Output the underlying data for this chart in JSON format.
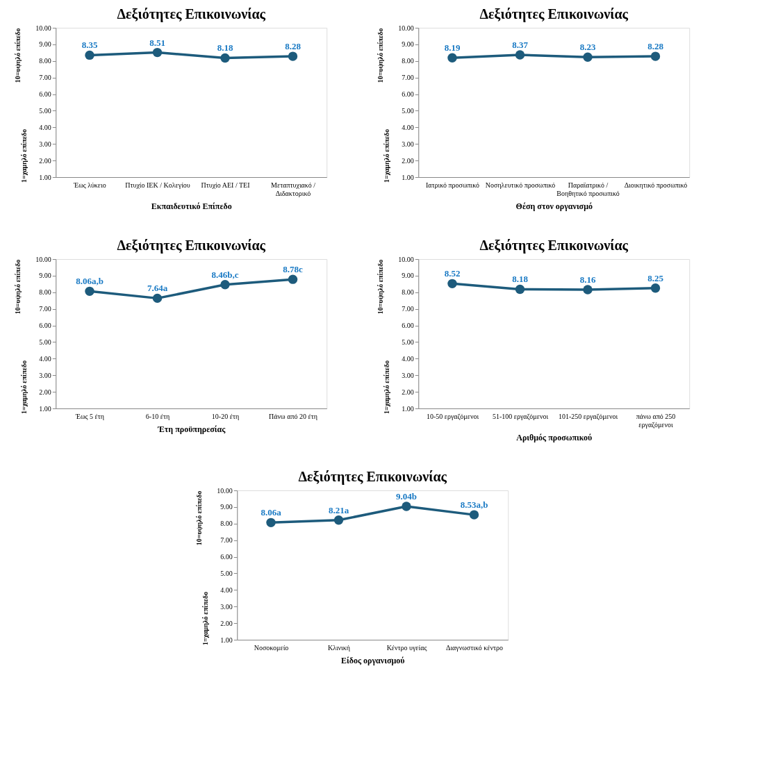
{
  "chart_data": [
    {
      "type": "line",
      "title": "Δεξιότητες Επικοινωνίας",
      "xlabel": "Εκπαιδευτικό Επίπεδο",
      "ylabel": "10=υψηλό επίπεδο",
      "annotations": [
        "1=χαμηλό επίπεδο"
      ],
      "categories": [
        "Έως λύκειο",
        "Πτυχίο ΙΕΚ / Κολεγίου",
        "Πτυχίο ΑΕΙ / ΤΕΙ",
        "Μεταπτυχιακό / Διδακτορικό"
      ],
      "series": [
        {
          "color": "#1d5b7c",
          "values": [
            8.35,
            8.51,
            8.18,
            8.28
          ],
          "value_labels": [
            "8.35",
            "8.51",
            "8.18",
            "8.28"
          ]
        }
      ],
      "ylim": [
        1,
        10
      ],
      "yticks": [
        {
          "value": 1,
          "label": "1.00"
        },
        {
          "value": 2,
          "label": "2.00"
        },
        {
          "value": 3,
          "label": "3.00"
        },
        {
          "value": 4,
          "label": "4.00"
        },
        {
          "value": 5,
          "label": "5.00"
        },
        {
          "value": 6,
          "label": "6.00"
        },
        {
          "value": 7,
          "label": "7.00"
        },
        {
          "value": 8,
          "label": "8.00"
        },
        {
          "value": 9,
          "label": "9.00"
        },
        {
          "value": 10,
          "label": "10.00"
        }
      ],
      "marker": "circle",
      "grid": false
    },
    {
      "type": "line",
      "title": "Δεξιότητες Επικοινωνίας",
      "xlabel": "Θέση στον οργανισμό",
      "ylabel": "10=υψηλό επίπεδο",
      "annotations": [
        "1=χαμηλό επίπεδο"
      ],
      "categories": [
        "Ιατρικό προσωπικό",
        "Νοσηλευτικό προσωπικό",
        "Παραϊατρικό / Βοηθητικό προσωπικό",
        "Διοικητικό προσωπικό"
      ],
      "series": [
        {
          "color": "#1d5b7c",
          "values": [
            8.19,
            8.37,
            8.23,
            8.28
          ],
          "value_labels": [
            "8.19",
            "8.37",
            "8.23",
            "8.28"
          ]
        }
      ],
      "ylim": [
        1,
        10
      ],
      "yticks": [
        {
          "value": 1,
          "label": "1.00"
        },
        {
          "value": 2,
          "label": "2.00"
        },
        {
          "value": 3,
          "label": "3.00"
        },
        {
          "value": 4,
          "label": "4.00"
        },
        {
          "value": 5,
          "label": "5.00"
        },
        {
          "value": 6,
          "label": "6.00"
        },
        {
          "value": 7,
          "label": "7.00"
        },
        {
          "value": 8,
          "label": "8.00"
        },
        {
          "value": 9,
          "label": "9.00"
        },
        {
          "value": 10,
          "label": "10.00"
        }
      ],
      "marker": "circle",
      "grid": false
    },
    {
      "type": "line",
      "title": "Δεξιότητες Επικοινωνίας",
      "xlabel": "Έτη προϋπηρεσίας",
      "ylabel": "10=υψηλό επίπεδο",
      "annotations": [
        "1=χαμηλό επίπεδο"
      ],
      "categories": [
        "Έως 5 έτη",
        "6-10 έτη",
        "10-20 έτη",
        "Πάνω από 20 έτη"
      ],
      "series": [
        {
          "color": "#1d5b7c",
          "values": [
            8.06,
            7.64,
            8.46,
            8.78
          ],
          "value_labels": [
            "8.06a,b",
            "7.64a",
            "8.46b,c",
            "8.78c"
          ]
        }
      ],
      "ylim": [
        1,
        10
      ],
      "yticks": [
        {
          "value": 1,
          "label": "1.00"
        },
        {
          "value": 2,
          "label": "2.00"
        },
        {
          "value": 3,
          "label": "3.00"
        },
        {
          "value": 4,
          "label": "4.00"
        },
        {
          "value": 5,
          "label": "5.00"
        },
        {
          "value": 6,
          "label": "6.00"
        },
        {
          "value": 7,
          "label": "7.00"
        },
        {
          "value": 8,
          "label": "8.00"
        },
        {
          "value": 9,
          "label": "9.00"
        },
        {
          "value": 10,
          "label": "10.00"
        }
      ],
      "marker": "circle",
      "grid": false
    },
    {
      "type": "line",
      "title": "Δεξιότητες Επικοινωνίας",
      "xlabel": "Αριθμός προσωπικού",
      "ylabel": "10=υψηλό επίπεδο",
      "annotations": [
        "1=χαμηλό επίπεδο"
      ],
      "categories": [
        "10-50 εργαζόμενοι",
        "51-100 εργαζόμενοι",
        "101-250 εργαζόμενοι",
        "πάνω από 250 εργαζόμενοι"
      ],
      "series": [
        {
          "color": "#1d5b7c",
          "values": [
            8.52,
            8.18,
            8.16,
            8.25
          ],
          "value_labels": [
            "8.52",
            "8.18",
            "8.16",
            "8.25"
          ]
        }
      ],
      "ylim": [
        1,
        10
      ],
      "yticks": [
        {
          "value": 1,
          "label": "1.00"
        },
        {
          "value": 2,
          "label": "2.00"
        },
        {
          "value": 3,
          "label": "3.00"
        },
        {
          "value": 4,
          "label": "4.00"
        },
        {
          "value": 5,
          "label": "5.00"
        },
        {
          "value": 6,
          "label": "6.00"
        },
        {
          "value": 7,
          "label": "7.00"
        },
        {
          "value": 8,
          "label": "8.00"
        },
        {
          "value": 9,
          "label": "9.00"
        },
        {
          "value": 10,
          "label": "10.00"
        }
      ],
      "marker": "circle",
      "grid": false
    },
    {
      "type": "line",
      "title": "Δεξιότητες Επικοινωνίας",
      "xlabel": "Είδος οργανισμού",
      "ylabel": "10=υψηλό επίπεδο",
      "annotations": [
        "1=χαμηλό επίπεδο"
      ],
      "categories": [
        "Νοσοκομείο",
        "Κλινική",
        "Κέντρο υγείας",
        "Διαγνωστικό κέντρο"
      ],
      "series": [
        {
          "color": "#1d5b7c",
          "values": [
            8.06,
            8.21,
            9.04,
            8.53
          ],
          "value_labels": [
            "8.06a",
            "8.21a",
            "9.04b",
            "8.53a,b"
          ]
        }
      ],
      "ylim": [
        1,
        10
      ],
      "yticks": [
        {
          "value": 1,
          "label": "1.00"
        },
        {
          "value": 2,
          "label": "2.00"
        },
        {
          "value": 3,
          "label": "3.00"
        },
        {
          "value": 4,
          "label": "4.00"
        },
        {
          "value": 5,
          "label": "5.00"
        },
        {
          "value": 6,
          "label": "6.00"
        },
        {
          "value": 7,
          "label": "7.00"
        },
        {
          "value": 8,
          "label": "8.00"
        },
        {
          "value": 9,
          "label": "9.00"
        },
        {
          "value": 10,
          "label": "10.00"
        }
      ],
      "marker": "circle",
      "grid": false
    }
  ]
}
